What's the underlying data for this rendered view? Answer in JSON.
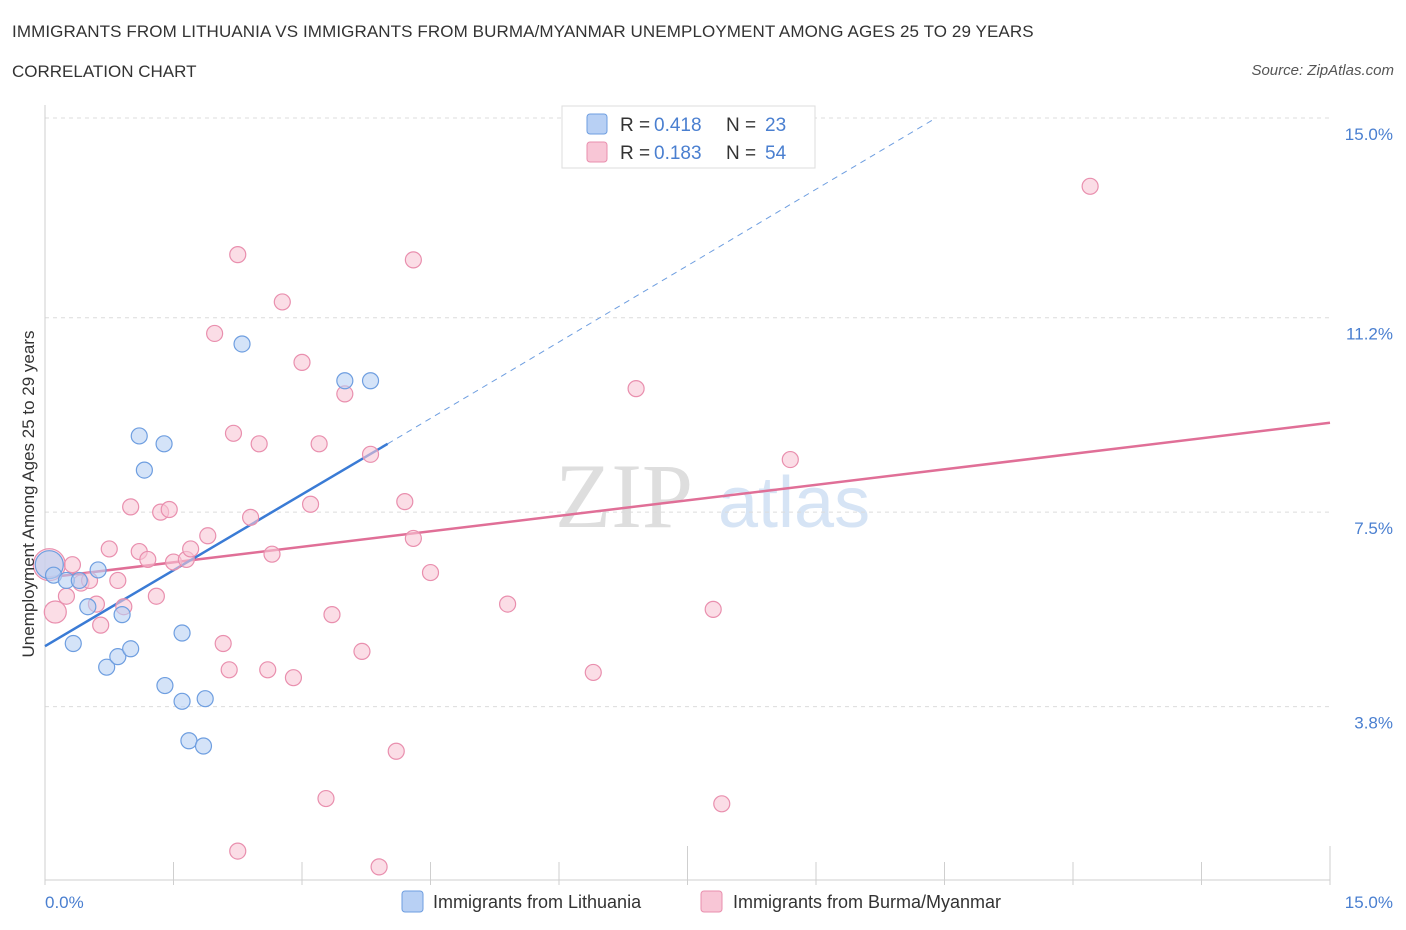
{
  "chart_data": {
    "type": "scatter",
    "title": "IMMIGRANTS FROM LITHUANIA VS IMMIGRANTS FROM BURMA/MYANMAR UNEMPLOYMENT AMONG AGES 25 TO 29 YEARS",
    "subtitle": "CORRELATION CHART",
    "source": "Source: ZipAtlas.com",
    "ylabel": "Unemployment Among Ages 25 to 29 years",
    "xlim": [
      0,
      15
    ],
    "ylim": [
      0.5,
      15.0
    ],
    "x_tick_labels": [
      "0.0%",
      "15.0%"
    ],
    "y_ticks": [
      {
        "value": 15.0,
        "label": "15.0%"
      },
      {
        "value": 11.2,
        "label": "11.2%"
      },
      {
        "value": 7.5,
        "label": "7.5%"
      },
      {
        "value": 3.8,
        "label": "3.8%"
      }
    ],
    "watermark": "ZIPatlas",
    "legend": [
      {
        "r_label": "R = ",
        "r_value": "0.418",
        "n_label": "N = ",
        "n_value": "23"
      },
      {
        "r_label": "R = ",
        "r_value": "0.183",
        "n_label": "N = ",
        "n_value": "54"
      }
    ],
    "colors": {
      "lithuania_fill": "#b8d0f4",
      "lithuania_stroke": "#6e9ee0",
      "lithuania_line": "#3a7bd5",
      "burma_fill": "#f8c6d6",
      "burma_stroke": "#e98fae",
      "burma_line": "#e06f97"
    },
    "series": [
      {
        "name": "Immigrants from Lithuania",
        "trend": {
          "x0": 0.0,
          "y0": 4.95,
          "x1": 4.0,
          "y1": 8.8,
          "dash_to_x": 10.4,
          "dash_to_y": 15.0
        },
        "points": [
          {
            "x": 0.05,
            "y": 6.5,
            "r": 14
          },
          {
            "x": 0.1,
            "y": 6.3
          },
          {
            "x": 0.25,
            "y": 6.2
          },
          {
            "x": 0.4,
            "y": 6.2
          },
          {
            "x": 0.62,
            "y": 6.4
          },
          {
            "x": 0.5,
            "y": 5.7
          },
          {
            "x": 0.9,
            "y": 5.55
          },
          {
            "x": 0.33,
            "y": 5.0
          },
          {
            "x": 0.72,
            "y": 4.55
          },
          {
            "x": 0.85,
            "y": 4.75
          },
          {
            "x": 1.0,
            "y": 4.9
          },
          {
            "x": 1.6,
            "y": 5.2
          },
          {
            "x": 1.4,
            "y": 4.2
          },
          {
            "x": 1.6,
            "y": 3.9
          },
          {
            "x": 1.87,
            "y": 3.95
          },
          {
            "x": 1.68,
            "y": 3.15
          },
          {
            "x": 1.85,
            "y": 3.05
          },
          {
            "x": 1.1,
            "y": 8.95
          },
          {
            "x": 1.39,
            "y": 8.8
          },
          {
            "x": 1.16,
            "y": 8.3
          },
          {
            "x": 2.3,
            "y": 10.7
          },
          {
            "x": 3.5,
            "y": 10.0
          },
          {
            "x": 3.8,
            "y": 10.0
          }
        ]
      },
      {
        "name": "Immigrants from Burma/Myanmar",
        "trend": {
          "x0": 0.0,
          "y0": 6.25,
          "x1": 15.0,
          "y1": 9.2
        },
        "points": [
          {
            "x": 0.05,
            "y": 6.5,
            "r": 16
          },
          {
            "x": 0.12,
            "y": 5.6,
            "r": 11
          },
          {
            "x": 0.32,
            "y": 6.5
          },
          {
            "x": 0.25,
            "y": 5.9
          },
          {
            "x": 0.42,
            "y": 6.15
          },
          {
            "x": 0.52,
            "y": 6.2
          },
          {
            "x": 0.6,
            "y": 5.75
          },
          {
            "x": 0.65,
            "y": 5.35
          },
          {
            "x": 0.75,
            "y": 6.8
          },
          {
            "x": 0.85,
            "y": 6.2
          },
          {
            "x": 0.92,
            "y": 5.7
          },
          {
            "x": 1.0,
            "y": 7.6
          },
          {
            "x": 1.1,
            "y": 6.75
          },
          {
            "x": 1.2,
            "y": 6.6
          },
          {
            "x": 1.3,
            "y": 5.9
          },
          {
            "x": 1.35,
            "y": 7.5
          },
          {
            "x": 1.45,
            "y": 7.55
          },
          {
            "x": 1.5,
            "y": 6.55
          },
          {
            "x": 1.65,
            "y": 6.6
          },
          {
            "x": 1.7,
            "y": 6.8
          },
          {
            "x": 1.9,
            "y": 7.05
          },
          {
            "x": 1.98,
            "y": 10.9
          },
          {
            "x": 2.08,
            "y": 5.0
          },
          {
            "x": 2.15,
            "y": 4.5
          },
          {
            "x": 2.2,
            "y": 9.0
          },
          {
            "x": 2.25,
            "y": 12.4
          },
          {
            "x": 2.4,
            "y": 7.4
          },
          {
            "x": 2.5,
            "y": 8.8
          },
          {
            "x": 2.6,
            "y": 4.5
          },
          {
            "x": 2.65,
            "y": 6.7
          },
          {
            "x": 2.77,
            "y": 11.5
          },
          {
            "x": 2.9,
            "y": 4.35
          },
          {
            "x": 3.0,
            "y": 10.35
          },
          {
            "x": 3.1,
            "y": 7.65
          },
          {
            "x": 3.2,
            "y": 8.8
          },
          {
            "x": 3.28,
            "y": 2.05
          },
          {
            "x": 3.35,
            "y": 5.55
          },
          {
            "x": 3.5,
            "y": 9.75
          },
          {
            "x": 3.7,
            "y": 4.85
          },
          {
            "x": 3.8,
            "y": 8.6
          },
          {
            "x": 2.25,
            "y": 1.05
          },
          {
            "x": 3.9,
            "y": 0.75
          },
          {
            "x": 4.1,
            "y": 2.95
          },
          {
            "x": 4.2,
            "y": 7.7
          },
          {
            "x": 4.3,
            "y": 7.0
          },
          {
            "x": 4.5,
            "y": 6.35
          },
          {
            "x": 4.3,
            "y": 12.3
          },
          {
            "x": 5.4,
            "y": 5.75
          },
          {
            "x": 6.4,
            "y": 4.45
          },
          {
            "x": 6.9,
            "y": 9.85
          },
          {
            "x": 7.8,
            "y": 5.65
          },
          {
            "x": 7.9,
            "y": 1.95
          },
          {
            "x": 8.7,
            "y": 8.5
          },
          {
            "x": 12.2,
            "y": 13.7
          }
        ]
      }
    ]
  }
}
